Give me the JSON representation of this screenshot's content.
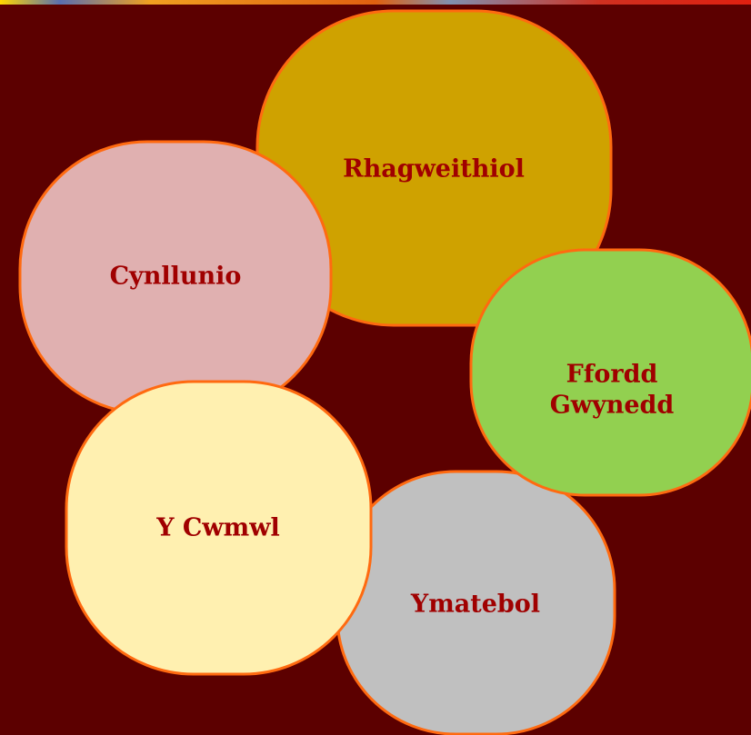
{
  "nodes": [
    {
      "lines": [
        "Rhagweithiol"
      ]
    },
    {
      "lines": [
        "Cynllunio"
      ]
    },
    {
      "lines": [
        "Ymatebol"
      ]
    },
    {
      "lines": [
        "Ffordd",
        "Gwynedd"
      ]
    },
    {
      "lines": [
        "Y Cwmwl"
      ]
    }
  ]
}
